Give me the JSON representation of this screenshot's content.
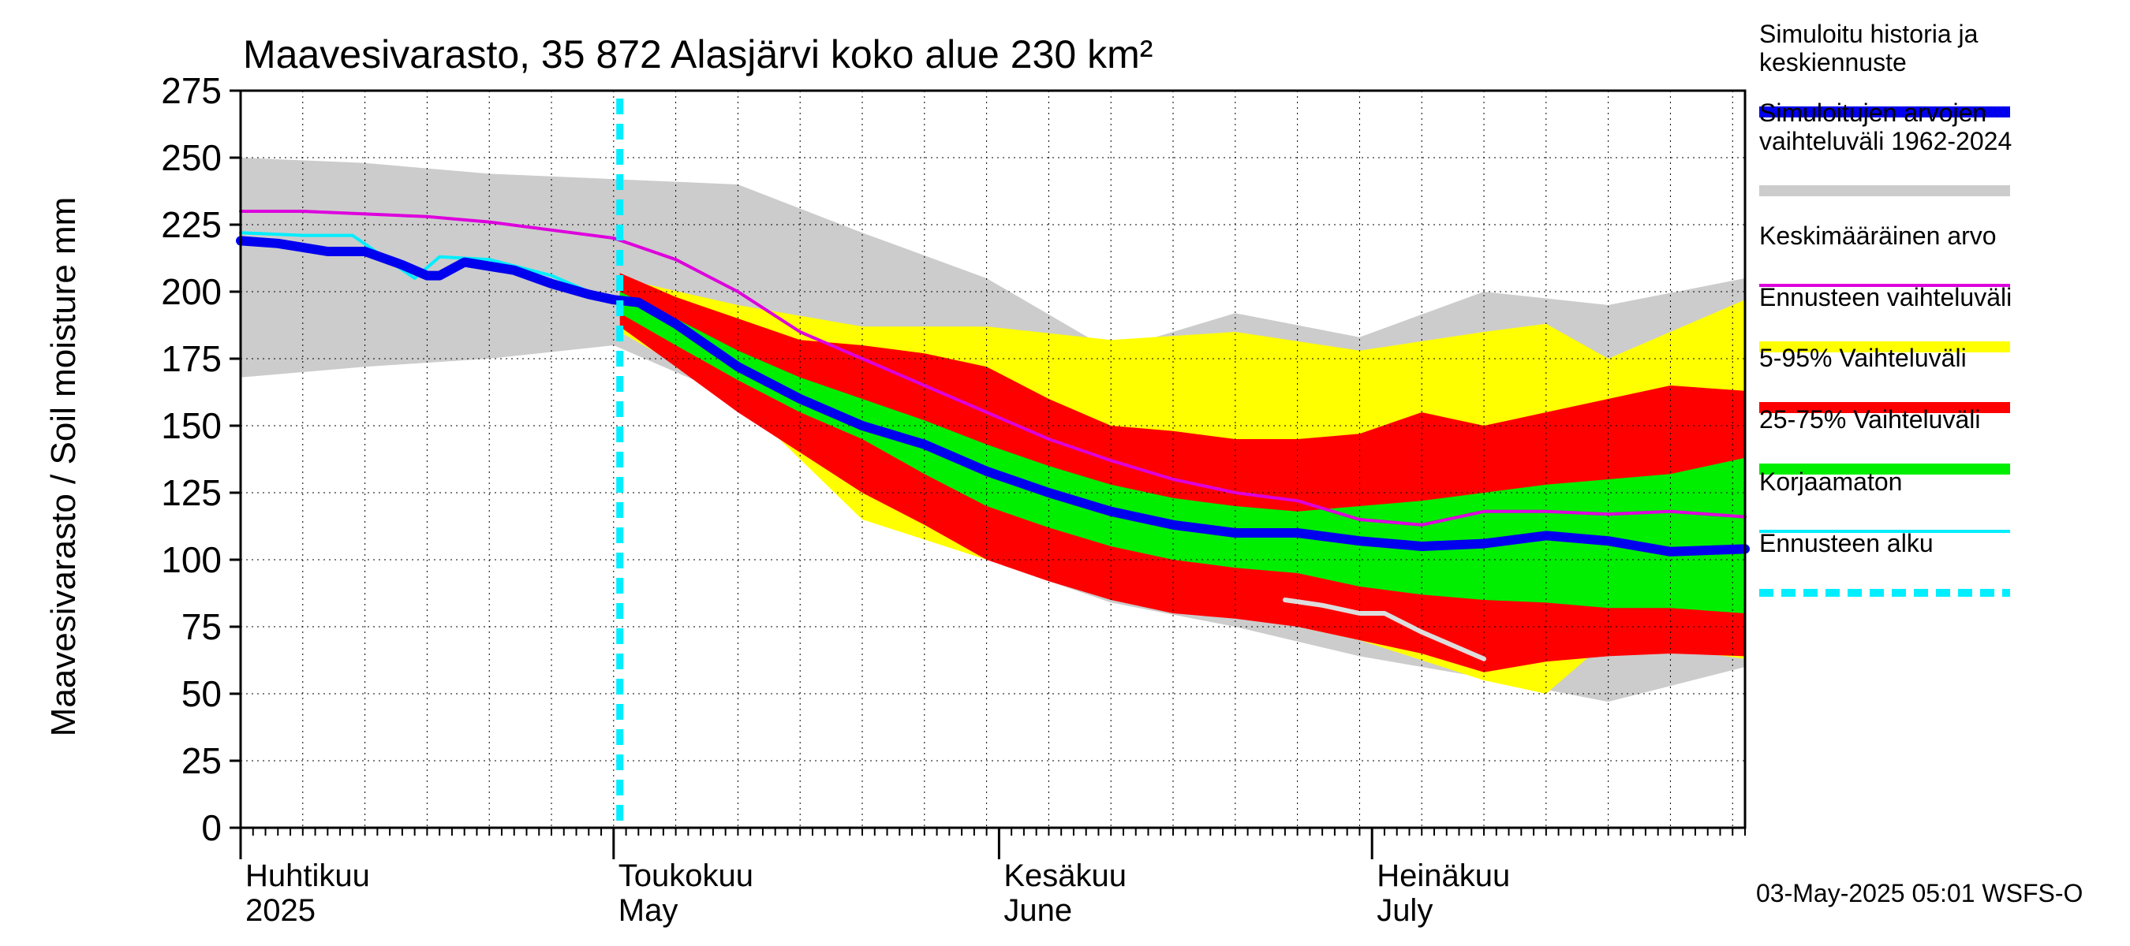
{
  "chart_data": {
    "type": "area",
    "title": "Maavesivarasto, 35 872 Alasjärvi koko alue 230 km²",
    "ylabel": "Maavesivarasto / Soil moisture   mm",
    "ylim": [
      0,
      275
    ],
    "yticks": [
      0,
      25,
      50,
      75,
      100,
      125,
      150,
      175,
      200,
      225,
      250,
      275
    ],
    "x_range_days": [
      0,
      121
    ],
    "x_start_date": "2025-04-01",
    "month_labels": [
      {
        "fi": "Huhtikuu",
        "en": "2025",
        "day": 0
      },
      {
        "fi": "Toukokuu",
        "en": "May",
        "day": 30
      },
      {
        "fi": "Kesäkuu",
        "en": "June",
        "day": 61
      },
      {
        "fi": "Heinäkuu",
        "en": "July",
        "day": 91
      }
    ],
    "forecast_start_day": 30.5,
    "timestamp": "03-May-2025 05:01 WSFS-O",
    "legend": [
      {
        "label": "Simuloitu historia ja\nkeskiennuste",
        "color": "#0000ee",
        "style": "thick"
      },
      {
        "label": "Simuloitujen arvojen\nvaihteluväli 1962-2024",
        "color": "#cccccc",
        "style": "thick"
      },
      {
        "label": "Keskimääräinen arvo",
        "color": "#dd00dd",
        "style": "thin"
      },
      {
        "label": "Ennusteen vaihteluväli",
        "color": "#ffff00",
        "style": "thick"
      },
      {
        "label": "5-95% Vaihteluväli",
        "color": "#ff0000",
        "style": "thick"
      },
      {
        "label": "25-75% Vaihteluväli",
        "color": "#00ee00",
        "style": "thick"
      },
      {
        "label": "Korjaamaton",
        "color": "#00eeff",
        "style": "thin"
      },
      {
        "label": "Ennusteen alku",
        "color": "#00eeff",
        "style": "dashed"
      }
    ],
    "series": [
      {
        "name": "hist_range",
        "color": "#cccccc",
        "x": [
          0,
          10,
          20,
          30,
          40,
          50,
          60,
          70,
          80,
          90,
          100,
          110,
          121
        ],
        "upper": [
          250,
          248,
          244,
          242,
          240,
          222,
          205,
          178,
          192,
          183,
          200,
          195,
          205
        ],
        "lower": [
          168,
          172,
          175,
          180,
          160,
          118,
          100,
          84,
          75,
          64,
          56,
          47,
          60
        ]
      },
      {
        "name": "forecast_range",
        "color": "#ffff00",
        "x": [
          30.5,
          40,
          50,
          60,
          70,
          80,
          90,
          100,
          105,
          110,
          121
        ],
        "upper": [
          205,
          195,
          187,
          187,
          182,
          185,
          178,
          185,
          188,
          175,
          197
        ],
        "lower": [
          185,
          160,
          115,
          100,
          90,
          80,
          70,
          55,
          50,
          70,
          63
        ]
      },
      {
        "name": "p5_95",
        "color": "#ff0000",
        "x": [
          30.5,
          35,
          40,
          45,
          50,
          55,
          60,
          65,
          70,
          75,
          80,
          85,
          90,
          95,
          100,
          105,
          110,
          115,
          121
        ],
        "upper": [
          207,
          198,
          190,
          182,
          180,
          177,
          172,
          160,
          150,
          148,
          145,
          145,
          147,
          155,
          150,
          155,
          160,
          165,
          163
        ],
        "lower": [
          187,
          172,
          155,
          140,
          125,
          113,
          100,
          92,
          85,
          80,
          78,
          75,
          70,
          65,
          58,
          62,
          64,
          65,
          64
        ]
      },
      {
        "name": "p25_75",
        "color": "#00ee00",
        "x": [
          30.5,
          35,
          40,
          45,
          50,
          55,
          60,
          65,
          70,
          75,
          80,
          85,
          90,
          95,
          100,
          105,
          110,
          115,
          121
        ],
        "upper": [
          200,
          190,
          178,
          168,
          160,
          152,
          143,
          135,
          128,
          123,
          120,
          118,
          120,
          122,
          125,
          128,
          130,
          132,
          138
        ],
        "lower": [
          192,
          180,
          167,
          155,
          145,
          132,
          120,
          112,
          105,
          100,
          97,
          95,
          90,
          87,
          85,
          84,
          82,
          82,
          80
        ]
      },
      {
        "name": "mean",
        "color": "#dd00dd",
        "x": [
          0,
          5,
          10,
          15,
          20,
          25,
          30,
          35,
          40,
          45,
          50,
          55,
          60,
          65,
          70,
          75,
          80,
          85,
          90,
          95,
          100,
          105,
          110,
          115,
          121
        ],
        "values": [
          230,
          230,
          229,
          228,
          226,
          223,
          220,
          212,
          200,
          185,
          175,
          165,
          155,
          145,
          137,
          130,
          125,
          122,
          115,
          113,
          118,
          118,
          117,
          118,
          116
        ]
      },
      {
        "name": "uncorrected",
        "color": "#00eeff",
        "x": [
          0,
          5,
          9,
          14,
          16,
          20,
          25,
          28
        ],
        "values": [
          222,
          221,
          221,
          205,
          213,
          212,
          206,
          200
        ]
      },
      {
        "name": "forecast_tail",
        "color": "#dddddd",
        "x": [
          84,
          87,
          90,
          92,
          95,
          100
        ],
        "values": [
          85,
          83,
          80,
          80,
          73,
          63
        ]
      },
      {
        "name": "median",
        "color": "#0000ee",
        "x": [
          0,
          3,
          7,
          10,
          13,
          15,
          16,
          18,
          22,
          25,
          28,
          30,
          32,
          35,
          40,
          45,
          50,
          55,
          60,
          65,
          70,
          75,
          80,
          85,
          90,
          95,
          100,
          105,
          110,
          115,
          121
        ],
        "values": [
          219,
          218,
          215,
          215,
          210,
          206,
          206,
          211,
          208,
          203,
          199,
          197,
          196,
          188,
          172,
          160,
          150,
          143,
          133,
          125,
          118,
          113,
          110,
          110,
          107,
          105,
          106,
          109,
          107,
          103,
          104
        ]
      }
    ]
  }
}
